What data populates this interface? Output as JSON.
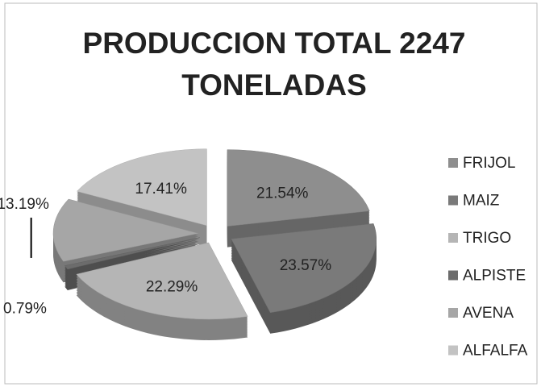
{
  "chart_data": {
    "type": "pie",
    "title": "PRODUCCION TOTAL 2247 TONELADAS",
    "categories": [
      "FRIJOL",
      "MAIZ",
      "TRIGO",
      "ALPISTE",
      "AVENA",
      "ALFALFA"
    ],
    "values": [
      21.54,
      23.57,
      22.29,
      0.79,
      13.19,
      17.41
    ],
    "value_labels": [
      "21.54%",
      "23.57%",
      "22.29%",
      "0.79%",
      "13.19%",
      "17.41%"
    ],
    "colors": [
      "#8e8e8e",
      "#7a7a7a",
      "#b5b5b5",
      "#6c6c6c",
      "#a6a6a6",
      "#c3c3c3"
    ],
    "legend": "right"
  }
}
